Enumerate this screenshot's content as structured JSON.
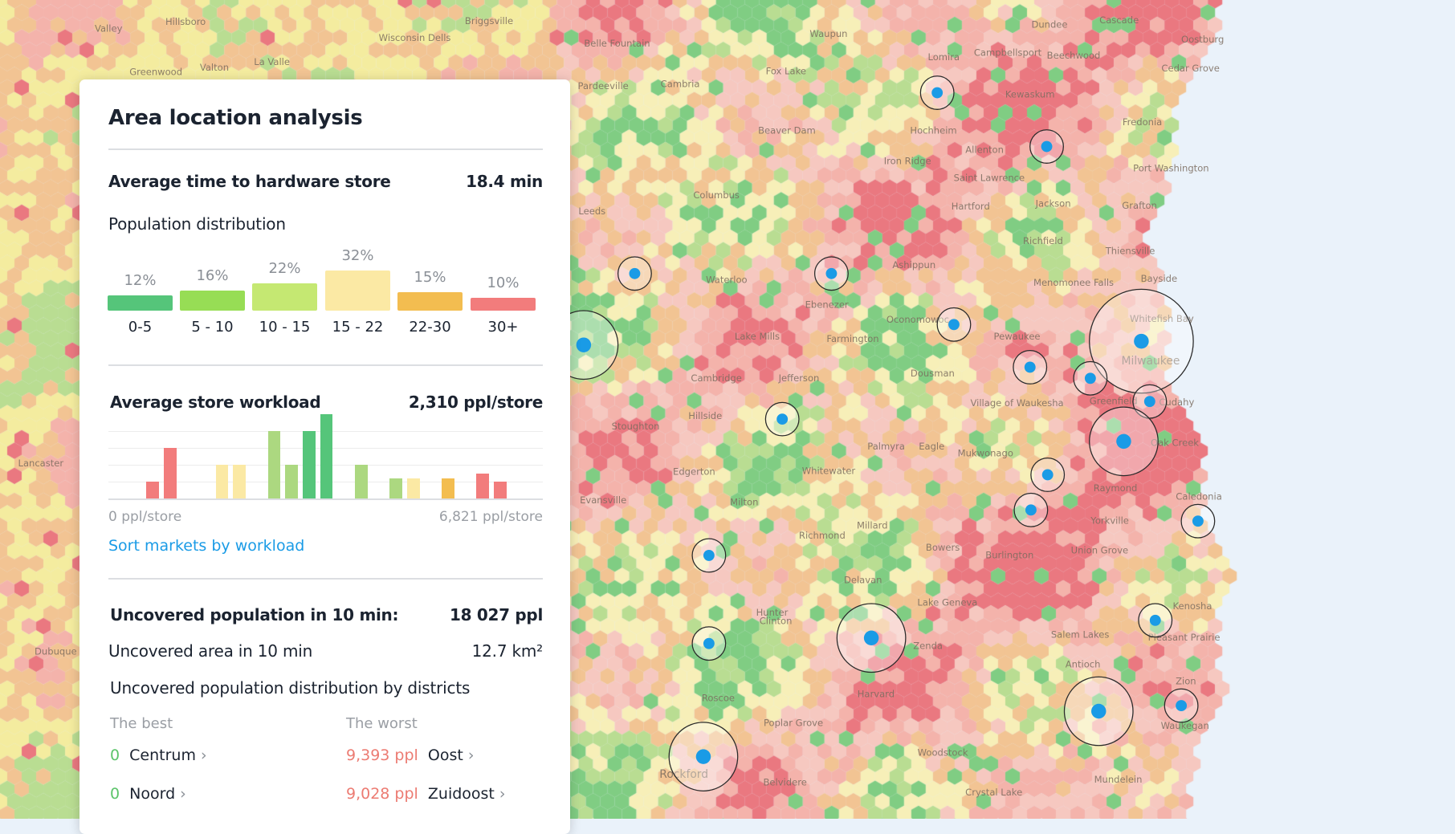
{
  "colors": {
    "accent": "#1a9be6",
    "store_dot": "#1a9be6",
    "water": "#eaf2fa",
    "good": "#5cc46a",
    "bad": "#ec7b72"
  },
  "panel": {
    "title": "Area location analysis",
    "avg_time": {
      "label": "Average time to hardware store",
      "value": "18.4 min"
    },
    "population_distribution": {
      "label": "Population distribution",
      "buckets": [
        {
          "range": "0-5",
          "percent": 12,
          "percent_label": "12%",
          "color": "#55c57a"
        },
        {
          "range": "5 - 10",
          "percent": 16,
          "percent_label": "16%",
          "color": "#97dd55"
        },
        {
          "range": "10 - 15",
          "percent": 22,
          "percent_label": "22%",
          "color": "#c5e872"
        },
        {
          "range": "15 - 22",
          "percent": 32,
          "percent_label": "32%",
          "color": "#fbe9a4"
        },
        {
          "range": "22-30",
          "percent": 15,
          "percent_label": "15%",
          "color": "#f3bd50"
        },
        {
          "range": "30+",
          "percent": 10,
          "percent_label": "10%",
          "color": "#f27c7c"
        }
      ]
    },
    "workload": {
      "label": "Average store workload",
      "value": "2,310 ppl/store",
      "axis_min_label": "0 ppl/store",
      "axis_max_label": "6,821 ppl/store",
      "sort_link": "Sort markets by workload",
      "histogram": [
        {
          "bin": 2,
          "count": 1,
          "color": "#f27c7c"
        },
        {
          "bin": 3,
          "count": 3,
          "color": "#f27c7c"
        },
        {
          "bin": 6,
          "count": 2,
          "color": "#fbe9a4"
        },
        {
          "bin": 7,
          "count": 2,
          "color": "#fbe9a4"
        },
        {
          "bin": 9,
          "count": 4,
          "color": "#acd880"
        },
        {
          "bin": 10,
          "count": 2,
          "color": "#acd880"
        },
        {
          "bin": 11,
          "count": 4,
          "color": "#55c57a"
        },
        {
          "bin": 12,
          "count": 5,
          "color": "#55c57a"
        },
        {
          "bin": 14,
          "count": 2,
          "color": "#acd880"
        },
        {
          "bin": 16,
          "count": 1.2,
          "color": "#acd880"
        },
        {
          "bin": 17,
          "count": 1.2,
          "color": "#fbe9a4"
        },
        {
          "bin": 19,
          "count": 1.2,
          "color": "#f3bd50"
        },
        {
          "bin": 21,
          "count": 1.5,
          "color": "#f27c7c"
        },
        {
          "bin": 22,
          "count": 1,
          "color": "#f27c7c"
        }
      ]
    },
    "uncovered": {
      "population_label": "Uncovered population in 10 min:",
      "population_value": "18 027 ppl",
      "area_label": "Uncovered area in 10 min",
      "area_value": "12.7 km²",
      "districts_label": "Uncovered population distribution by districts",
      "best_label": "The best",
      "worst_label": "The worst",
      "best": [
        {
          "value": "0",
          "name": "Centrum"
        },
        {
          "value": "0",
          "name": "Noord"
        }
      ],
      "worst": [
        {
          "value": "9,393 ppl",
          "name": "Oost"
        },
        {
          "value": "9,028 ppl",
          "name": "Zuidoost"
        }
      ]
    }
  },
  "map": {
    "labels": [
      "Hillsboro",
      "Valley",
      "Briggsville",
      "Wisconsin Dells",
      "Belle Fountain",
      "La Valle",
      "Greenwood",
      "Valton",
      "Lomira",
      "Campbellsport",
      "Beechwood",
      "Dundee",
      "Cascade",
      "Oostburg",
      "Waupun",
      "Cedar Grove",
      "Fox Lake",
      "Pardeeville",
      "Cambria",
      "Kewaskum",
      "Fredonia",
      "Beaver Dam",
      "Hochheim",
      "Allenton",
      "Port Washington",
      "Columbus",
      "Iron Ridge",
      "Saint Lawrence",
      "Hartford",
      "Grafton",
      "Jackson",
      "Richfield",
      "Thiensville",
      "Waterloo",
      "Ashippun",
      "Menomonee Falls",
      "Bayside",
      "Oconomowoc",
      "Pewaukee",
      "Whitefish Bay",
      "Milwaukee",
      "Lake Mills",
      "Farmington",
      "Jefferson",
      "Cambridge",
      "Dousman",
      "Greenfield",
      "Cudahy",
      "Stoughton",
      "Hillside",
      "Village of Waukesha",
      "Oak Creek",
      "Whitewater",
      "Palmyra",
      "Eagle",
      "Mukwonago",
      "Raymond",
      "Caledonia",
      "Evansville",
      "Edgerton",
      "Milton",
      "Millard",
      "Yorkville",
      "Richmond",
      "Burlington",
      "Union Grove",
      "Bowers",
      "Delavan",
      "Lake Geneva",
      "Kenosha",
      "Salem Lakes",
      "Pleasant Prairie",
      "Antioch",
      "Zenda",
      "Harvard",
      "Zion",
      "Waukegan",
      "Woodstock",
      "Mundelein",
      "Belvidere",
      "Rockford",
      "Crystal Lake",
      "Lancaster",
      "Dubuque",
      "Leeds",
      "Ebenezer",
      "Clinton",
      "Poplar Grove",
      "Roscoe",
      "Hunter"
    ],
    "stores": [
      {
        "coverage": "small"
      },
      {
        "coverage": "small"
      },
      {
        "coverage": "small"
      },
      {
        "coverage": "small"
      },
      {
        "coverage": "medium"
      },
      {
        "coverage": "small"
      },
      {
        "coverage": "large"
      },
      {
        "coverage": "small"
      },
      {
        "coverage": "small"
      },
      {
        "coverage": "small"
      },
      {
        "coverage": "medium"
      },
      {
        "coverage": "small"
      },
      {
        "coverage": "small"
      },
      {
        "coverage": "small"
      },
      {
        "coverage": "small"
      },
      {
        "coverage": "small"
      },
      {
        "coverage": "medium"
      },
      {
        "coverage": "small"
      },
      {
        "coverage": "small"
      },
      {
        "coverage": "medium"
      },
      {
        "coverage": "small"
      },
      {
        "coverage": "medium"
      }
    ]
  }
}
